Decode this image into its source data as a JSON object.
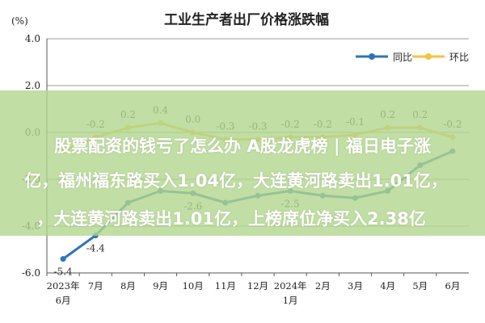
{
  "chart_data": {
    "type": "line",
    "title": "工业生产者出厂价格涨跌幅",
    "unit": "(%)",
    "categories": [
      "2023年6月",
      "7月",
      "8月",
      "9月",
      "10月",
      "11月",
      "12月",
      "2024年1月",
      "2月",
      "3月",
      "4月",
      "5月",
      "6月"
    ],
    "ylim": [
      -6.0,
      4.0
    ],
    "yticks": [
      "4.0",
      "2.0",
      "0.0",
      "-2.0",
      "-4.0",
      "-6.0"
    ],
    "grid": true,
    "legend_position": "top-right",
    "series": [
      {
        "name": "同比",
        "color": "#2e75b6",
        "values": [
          -5.4,
          -4.4,
          -3.0,
          -2.5,
          -2.6,
          -3.0,
          -2.7,
          -2.5,
          -2.7,
          -2.8,
          -2.5,
          -1.4,
          -0.8
        ],
        "labels": [
          "-5.4",
          "-4.4",
          "",
          "",
          "-2.6",
          "",
          "",
          "-2.5",
          "",
          "",
          "",
          "",
          ""
        ]
      },
      {
        "name": "环比",
        "color": "#f5c242",
        "values": [
          -0.8,
          -0.2,
          0.2,
          0.4,
          0.0,
          -0.3,
          -0.3,
          -0.2,
          -0.2,
          -0.1,
          0.2,
          0.2,
          -0.2
        ],
        "labels": [
          "",
          "-0.2",
          "0.2",
          "0.4",
          "0.0",
          "-0.3",
          "-0.3",
          "-0.2",
          "-0.2",
          "-0.1",
          "0.2",
          "0.2",
          "-0.2"
        ]
      }
    ]
  },
  "banner": {
    "line1": "股票配资的钱亏了怎么办 A股龙虎榜 | 福日电子涨",
    "line2": "亿，福州福东路买入1.04亿，大连黄河路卖出1.01亿，",
    "line3": "，大连黄河路卖出1.01亿，上榜席位净买入2.38亿"
  }
}
